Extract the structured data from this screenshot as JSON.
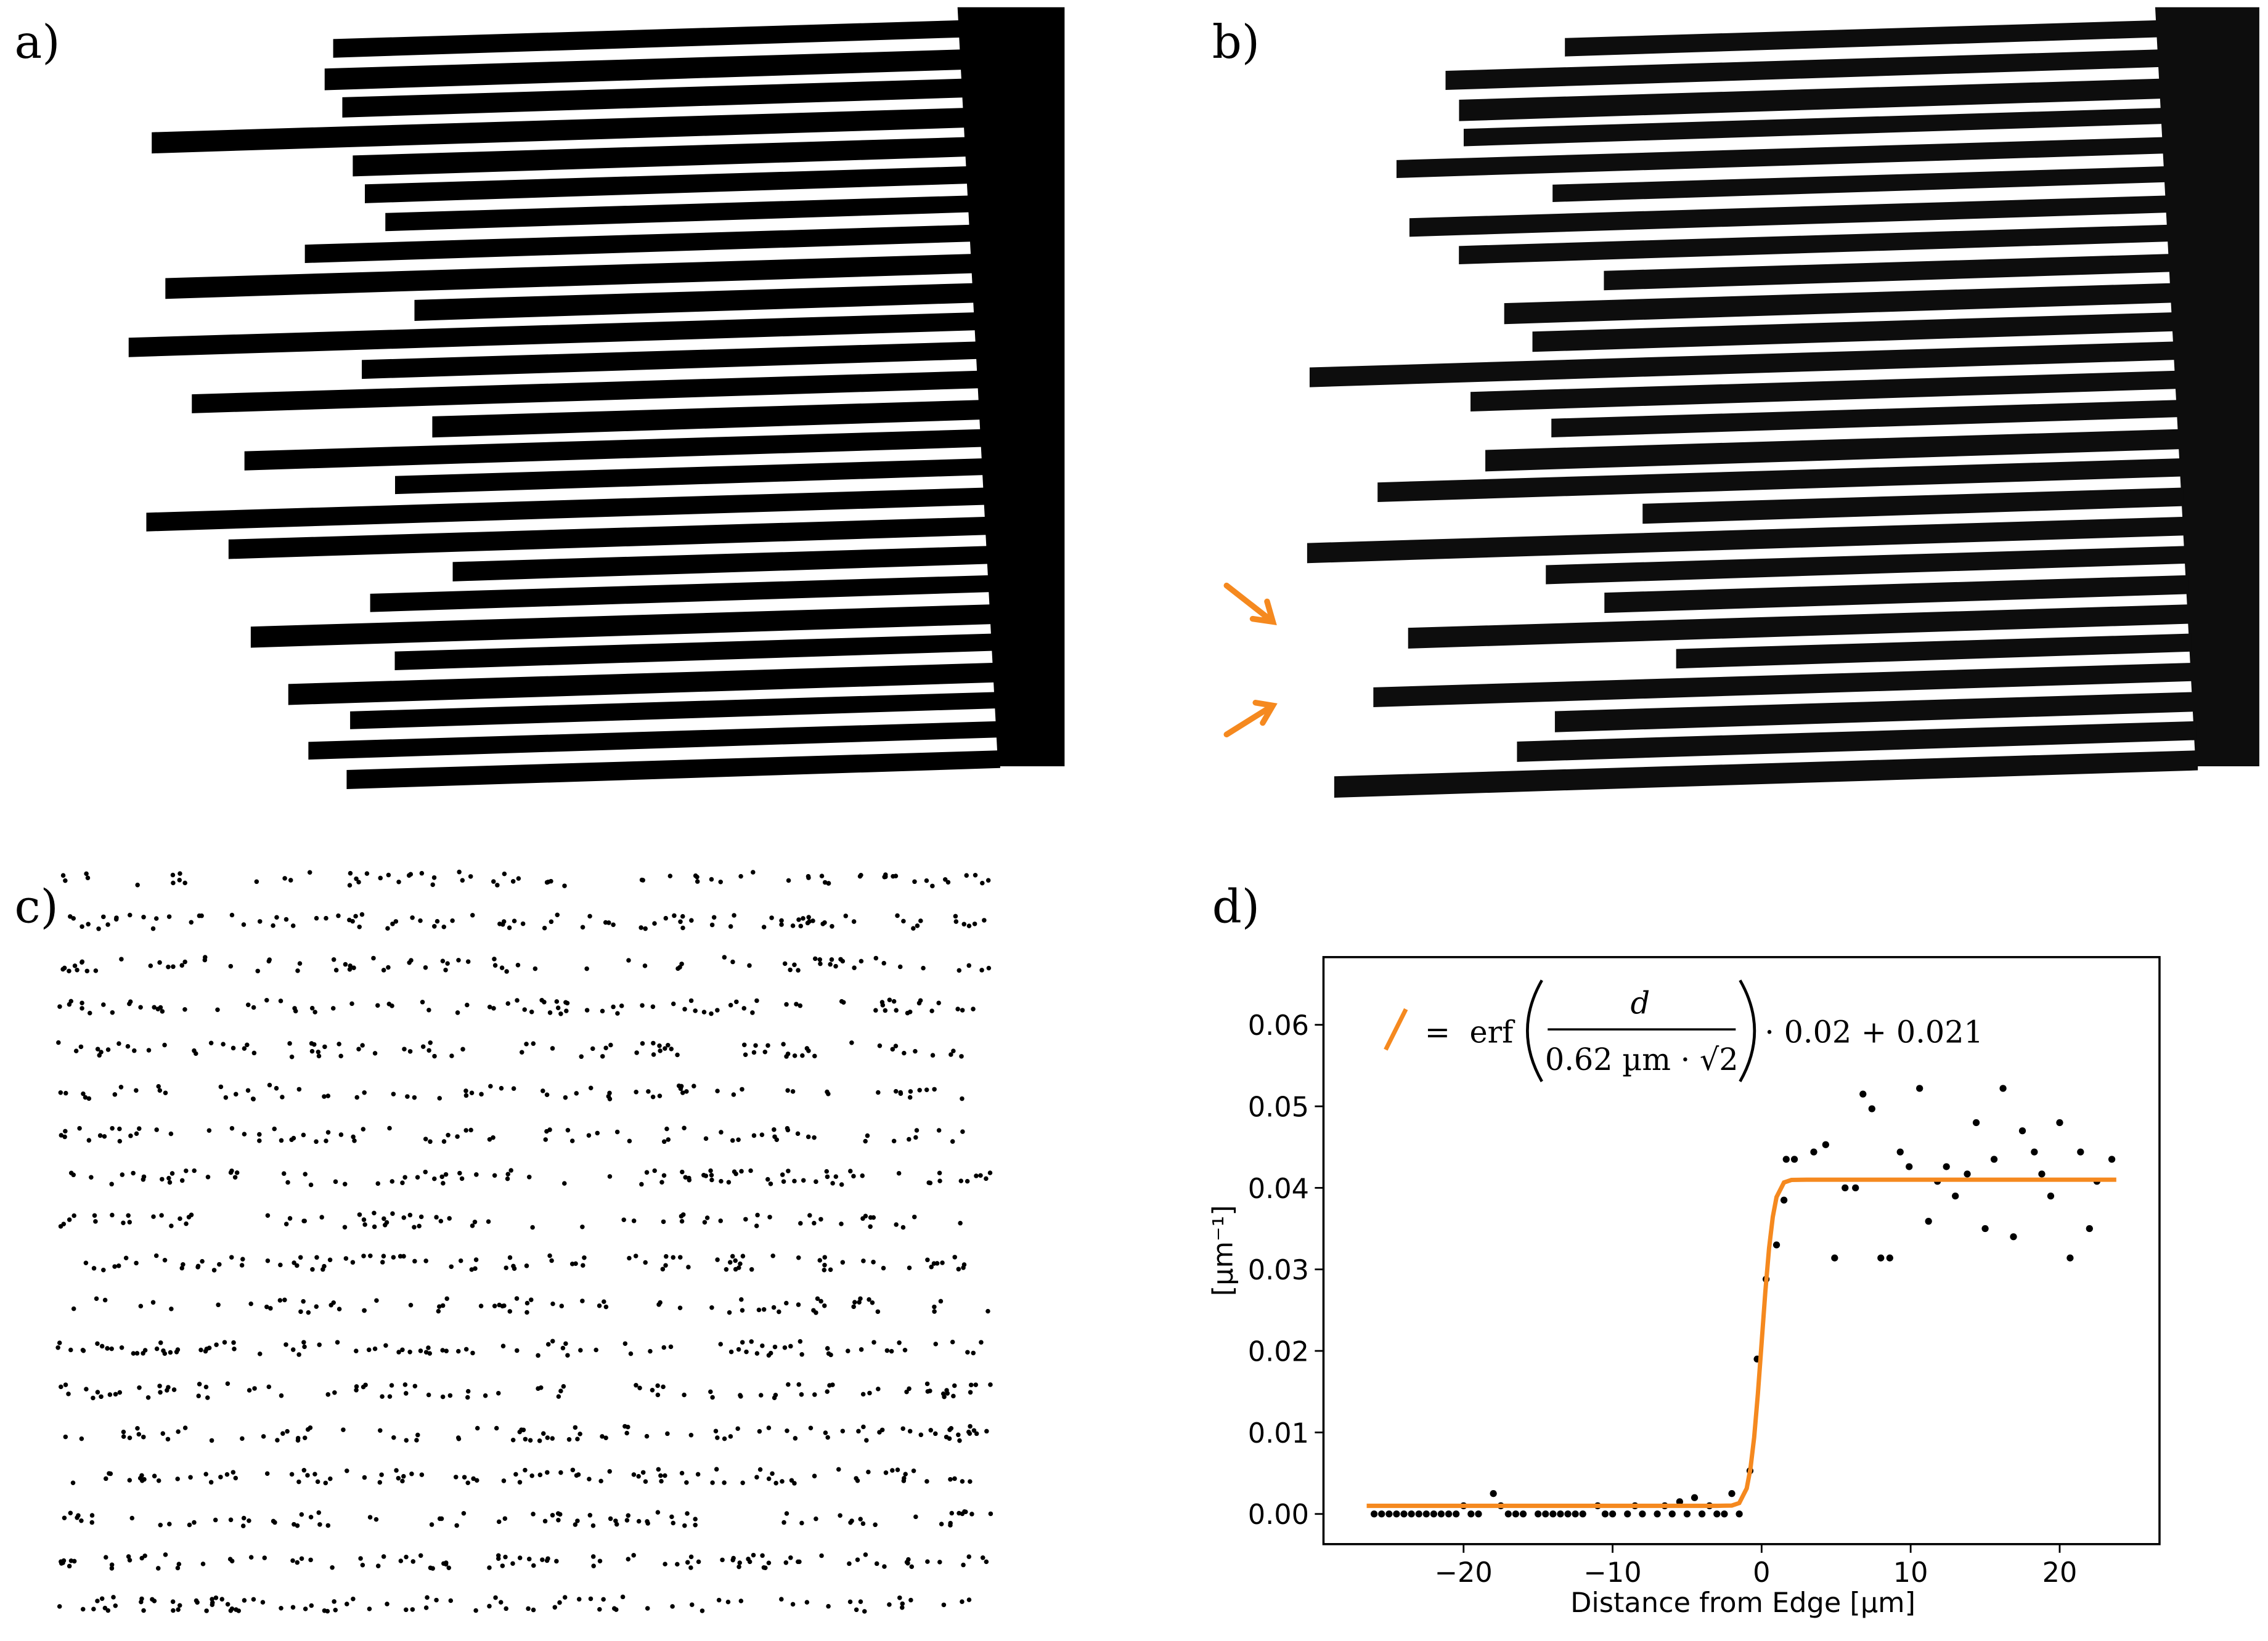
{
  "panels": {
    "a": "a)",
    "b": "b)",
    "c": "c)",
    "d": "d)"
  },
  "chart_data": {
    "type": "scatter",
    "xlabel": "Distance from Edge [µm]",
    "ylabel": "[µm⁻¹]",
    "xlim": [
      -29.4,
      26.7
    ],
    "ylim": [
      -0.0037,
      0.0683
    ],
    "xticks": [
      {
        "value": -20,
        "label": "−20"
      },
      {
        "value": -10,
        "label": "−10"
      },
      0,
      10,
      20
    ],
    "yticks": [
      {
        "value": 0,
        "label": "0.00"
      },
      0.01,
      0.02,
      0.03,
      0.04,
      0.05,
      0.06
    ],
    "legend": {
      "prefix": "=",
      "func": "erf",
      "numerator": "d",
      "denominator": "0.62 µm · √2",
      "suffix": "· 0.02 + 0.021"
    },
    "series": [
      {
        "type": "scatter",
        "color": "#000000",
        "x": [
          -26,
          -25.5,
          -25,
          -24.5,
          -24,
          -23.5,
          -23,
          -22.5,
          -22,
          -21.5,
          -21,
          -20.5,
          -20,
          -19.5,
          -19,
          -18,
          -17.5,
          -17,
          -16.5,
          -16,
          -15,
          -14.5,
          -14,
          -13.5,
          -13,
          -12.5,
          -12,
          -11,
          -10.5,
          -10,
          -9,
          -8.5,
          -8,
          -7,
          -6.5,
          -6,
          -5.5,
          -5,
          -4.5,
          -4,
          -3.5,
          -3,
          -2.5,
          -2,
          -1.5,
          -0.78,
          -0.3,
          0.3,
          1,
          1.5,
          1.65,
          2.2,
          3.5,
          4.3,
          4.9,
          5.6,
          6.3,
          6.8,
          7.4,
          8,
          8.6,
          9.3,
          9.9,
          10.6,
          11.2,
          11.8,
          12.4,
          13,
          13.8,
          14.4,
          15,
          15.6,
          16.2,
          16.9,
          17.5,
          18.3,
          18.8,
          19.4,
          20,
          20.7,
          21.4,
          22,
          22.5,
          23.5
        ],
        "values": [
          0,
          0,
          0,
          0,
          0,
          0,
          0,
          0,
          0,
          0,
          0,
          0,
          0.001,
          0,
          0,
          0.0025,
          0.001,
          0,
          0,
          0,
          0,
          0,
          0,
          0,
          0,
          0,
          0,
          0.001,
          0,
          0,
          0,
          0.001,
          0,
          0,
          0.001,
          0,
          0.0015,
          0,
          0.002,
          0,
          0.001,
          0,
          0,
          0.0025,
          0,
          0.0053,
          0.019,
          0.0288,
          0.033,
          0.0385,
          0.0435,
          0.0435,
          0.0444,
          0.0453,
          0.0314,
          0.04,
          0.04,
          0.0515,
          0.0497,
          0.0314,
          0.0314,
          0.0444,
          0.0426,
          0.0522,
          0.0359,
          0.0408,
          0.0426,
          0.039,
          0.0417,
          0.048,
          0.035,
          0.0435,
          0.0522,
          0.034,
          0.047,
          0.0444,
          0.0417,
          0.039,
          0.048,
          0.0314,
          0.0444,
          0.035,
          0.0408,
          0.0435
        ]
      },
      {
        "type": "line",
        "color": "#f5891f",
        "x": [
          -26.5,
          -3,
          -2,
          -1.5,
          -1,
          -0.75,
          -0.5,
          -0.25,
          0,
          0.25,
          0.5,
          0.75,
          1,
          1.5,
          2,
          3,
          23.8
        ],
        "values": [
          0.001,
          0.001,
          0.00103,
          0.00134,
          0.00314,
          0.00556,
          0.0094,
          0.01474,
          0.021,
          0.02726,
          0.0326,
          0.03644,
          0.03886,
          0.04066,
          0.04097,
          0.041,
          0.041
        ]
      }
    ]
  }
}
